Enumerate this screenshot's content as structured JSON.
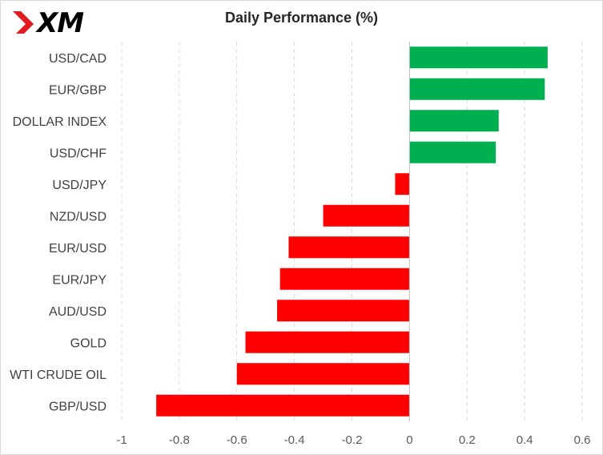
{
  "logo": {
    "text": "XM"
  },
  "chart_data": {
    "type": "bar",
    "orientation": "horizontal",
    "title": "Daily Performance  (%)",
    "categories": [
      "USD/CAD",
      "EUR/GBP",
      "DOLLAR INDEX",
      "USD/CHF",
      "USD/JPY",
      "NZD/USD",
      "EUR/USD",
      "EUR/JPY",
      "AUD/USD",
      "GOLD",
      "WTI CRUDE OIL",
      "GBP/USD"
    ],
    "values": [
      0.48,
      0.47,
      0.31,
      0.3,
      -0.05,
      -0.3,
      -0.42,
      -0.45,
      -0.46,
      -0.57,
      -0.6,
      -0.88
    ],
    "xlim": [
      -1,
      0.6
    ],
    "xticks": [
      -1,
      -0.8,
      -0.6,
      -0.4,
      -0.2,
      0,
      0.2,
      0.4,
      0.6
    ],
    "xtick_labels": [
      "-1",
      "-0.8",
      "-0.6",
      "-0.4",
      "-0.2",
      "0",
      "0.2",
      "0.4",
      "0.6"
    ],
    "grid": "vertical dashed",
    "colors": {
      "positive": "#00b050",
      "negative": "#ff0000",
      "grid": "#d9d9d9",
      "logo_red": "#e11b22"
    }
  }
}
